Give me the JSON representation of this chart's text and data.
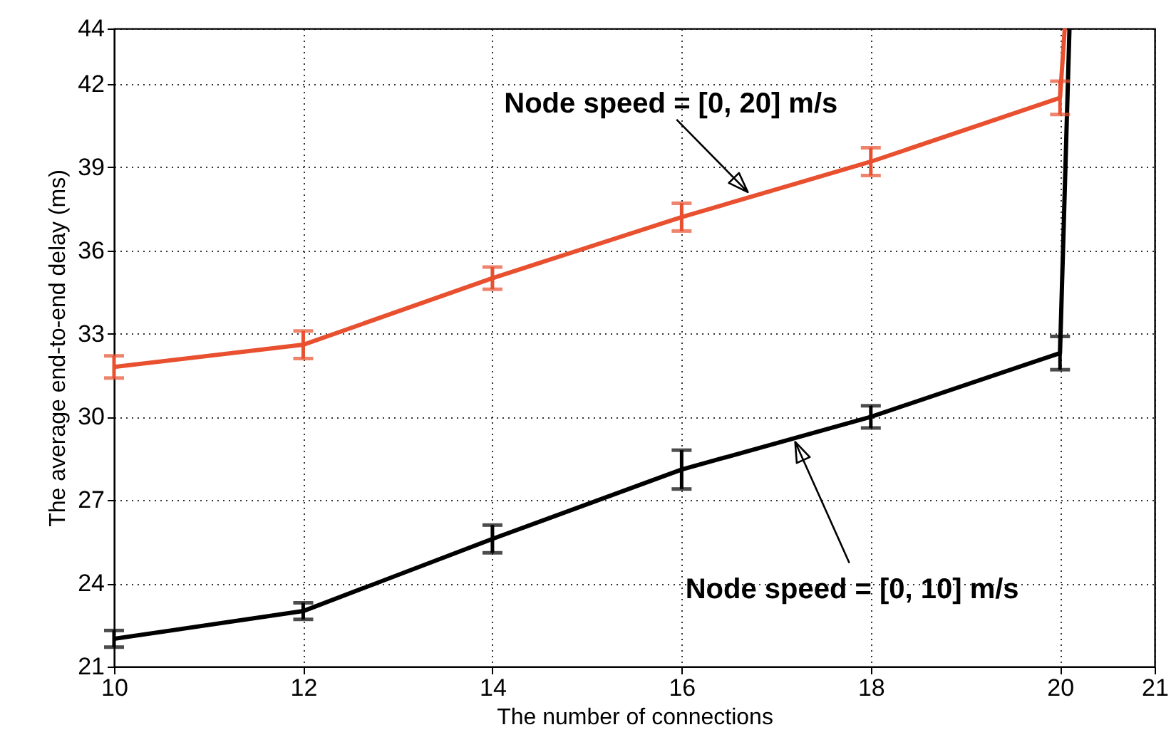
{
  "chart_data": {
    "type": "line",
    "xlabel": "The number of connections",
    "ylabel": "The average end-to-end delay (ms)",
    "xlim": [
      10,
      21
    ],
    "xticks": [
      10,
      12,
      14,
      16,
      18,
      20,
      21
    ],
    "ylim": [
      21,
      44
    ],
    "yticks": [
      21,
      24,
      27,
      30,
      33,
      36,
      39,
      42,
      44
    ],
    "grid": true,
    "series": [
      {
        "color": "#e8502f",
        "x": [
          10,
          12,
          14,
          16,
          18,
          20,
          20.05
        ],
        "values": [
          31.8,
          32.6,
          35.0,
          37.2,
          39.2,
          41.5,
          44
        ],
        "errors": [
          0.4,
          0.5,
          0.4,
          0.5,
          0.5,
          0.6,
          null
        ]
      },
      {
        "color": "#000000",
        "x": [
          10,
          12,
          14,
          16,
          18,
          20,
          20.1
        ],
        "values": [
          22.0,
          23.0,
          25.6,
          28.1,
          30.0,
          32.3,
          44
        ],
        "errors": [
          0.3,
          0.3,
          0.5,
          0.7,
          0.4,
          0.6,
          null
        ]
      }
    ],
    "annotations": [
      {
        "text": "Node speed = [0, 20] m/s",
        "x": 16.7,
        "y": 38.1
      },
      {
        "text": "Node speed = [0, 10] m/s",
        "x": 17.2,
        "y": 29.1
      }
    ]
  }
}
